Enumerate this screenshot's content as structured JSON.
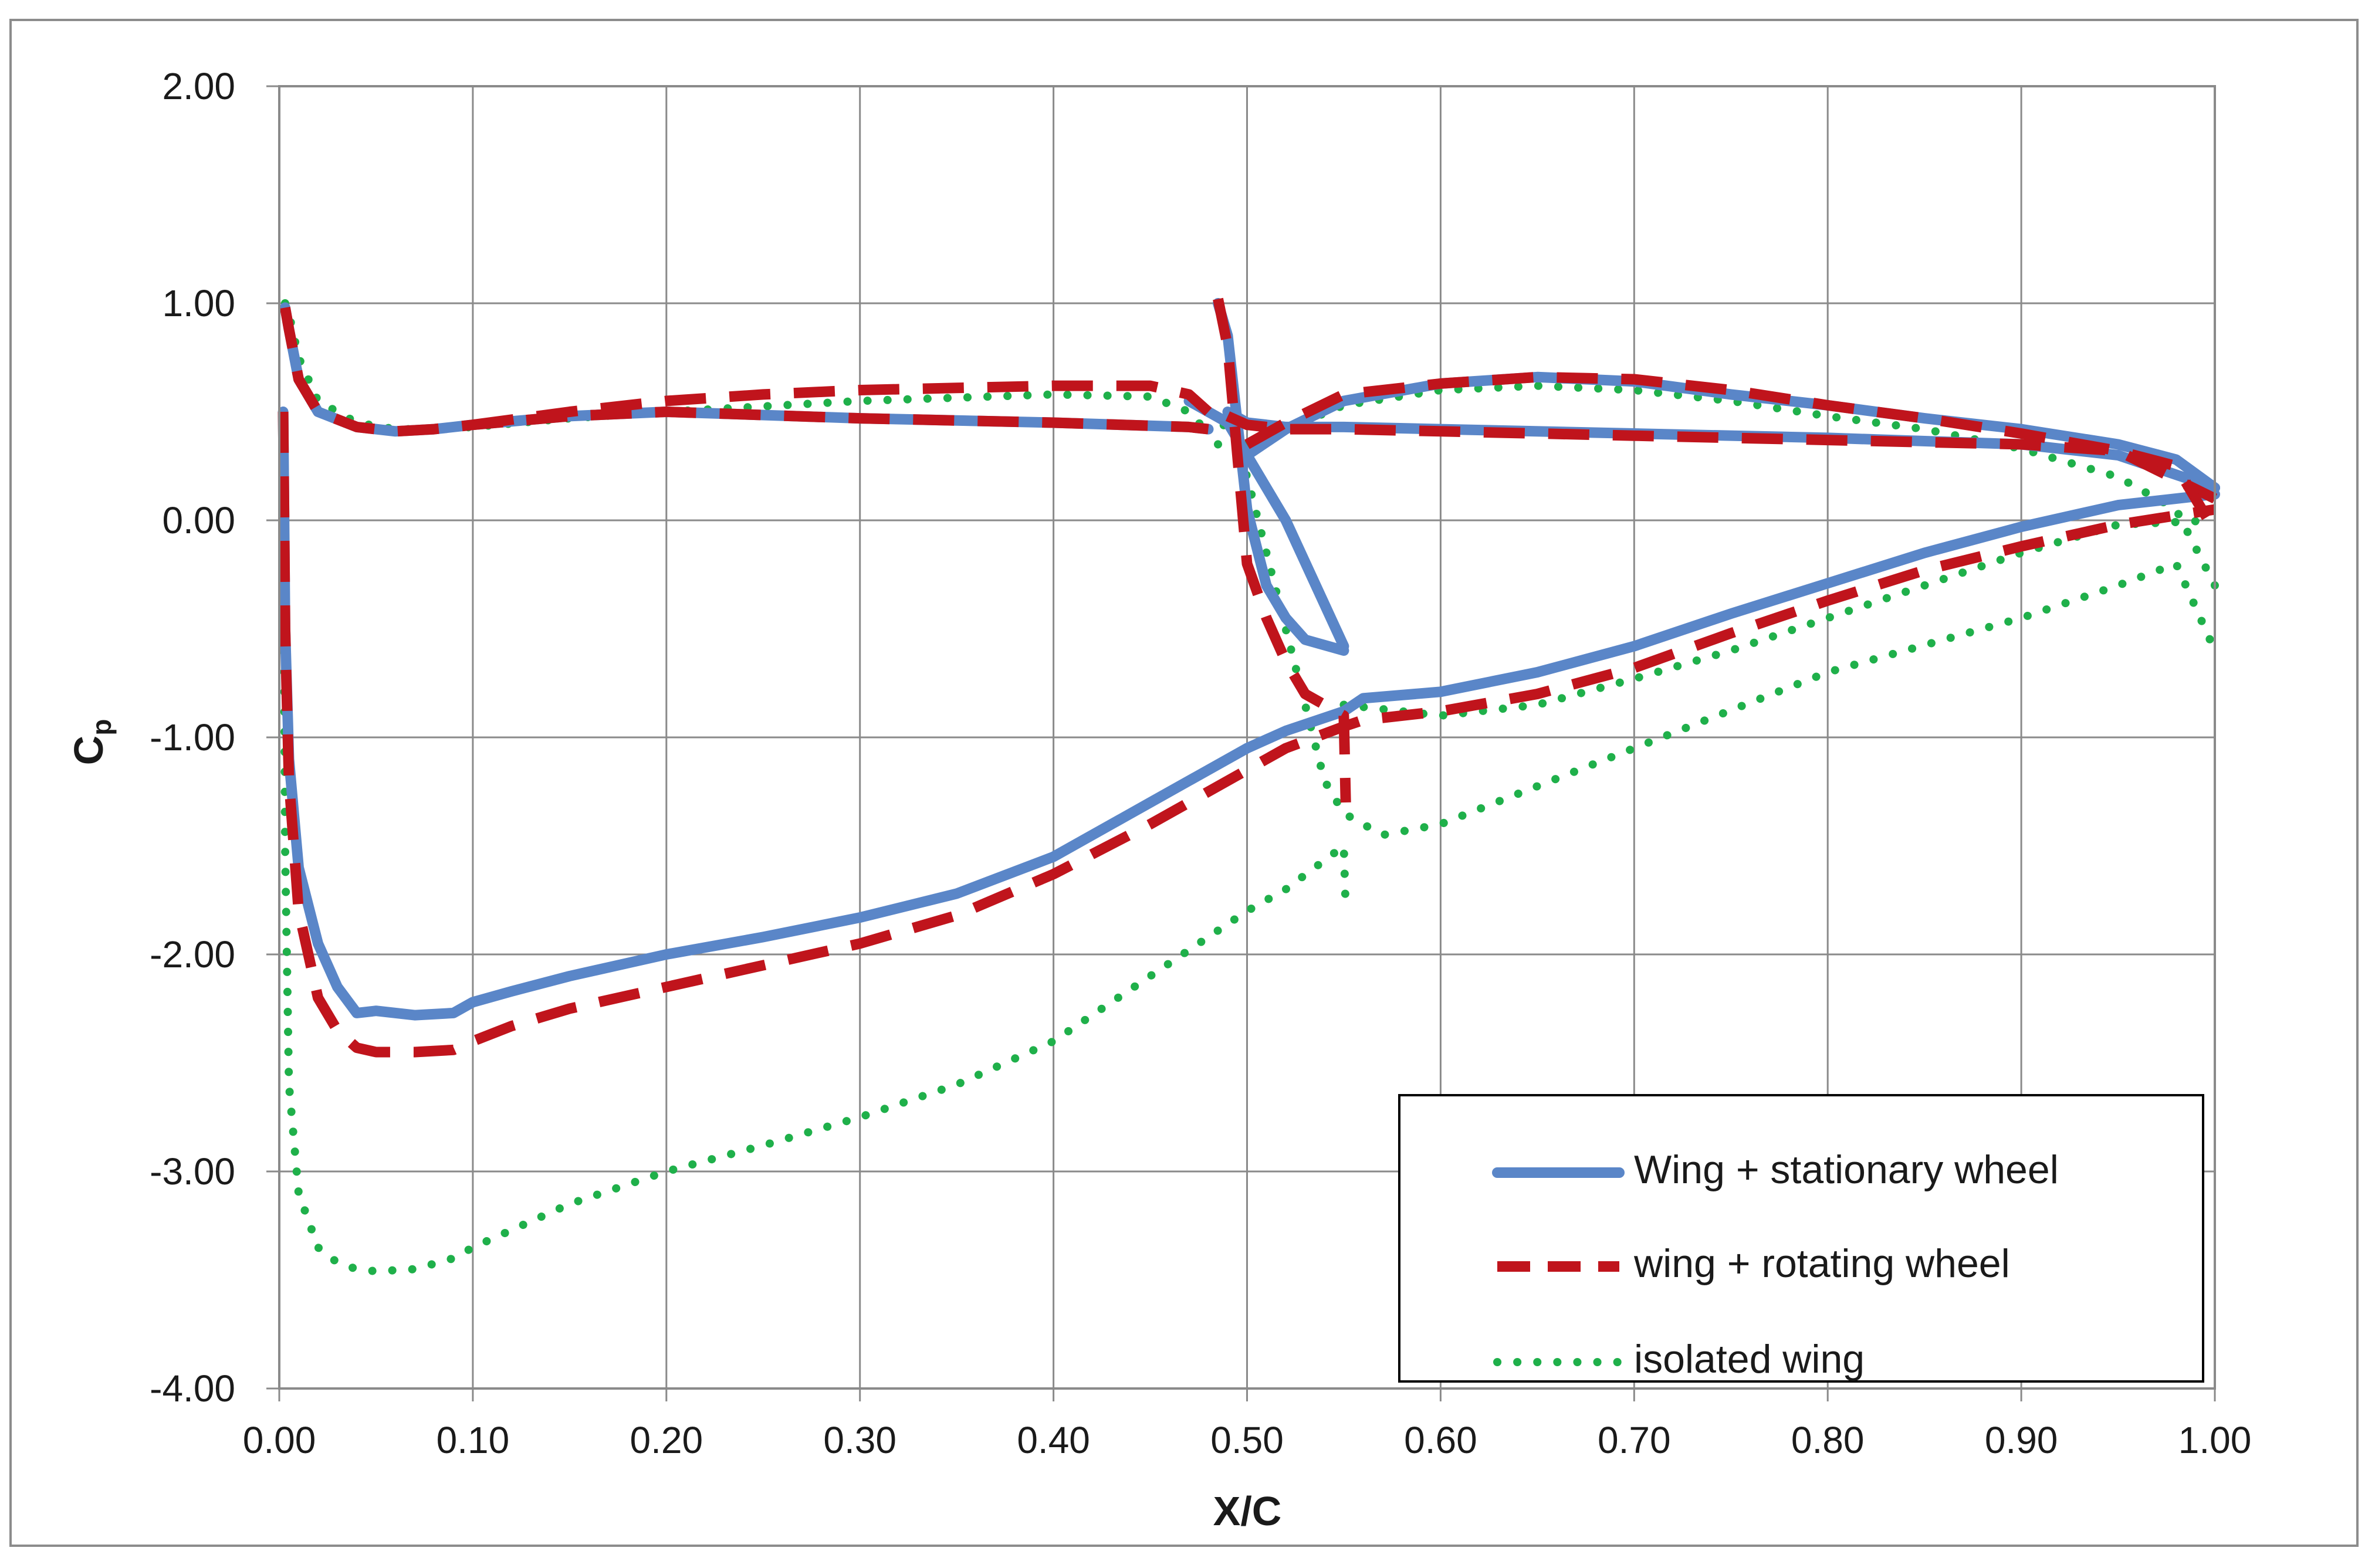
{
  "chart_data": {
    "type": "line",
    "title": "",
    "xlabel": "X/C",
    "ylabel": "Cp",
    "ylabel_main": "C",
    "ylabel_sub": "p",
    "xlim": [
      0.0,
      1.0
    ],
    "ylim": [
      -4.0,
      2.0
    ],
    "grid": true,
    "legend_position": "bottom-right",
    "x_ticks": [
      "0.00",
      "0.10",
      "0.20",
      "0.30",
      "0.40",
      "0.50",
      "0.60",
      "0.70",
      "0.80",
      "0.90",
      "1.00"
    ],
    "y_ticks": [
      "2.00",
      "1.00",
      "0.00",
      "-1.00",
      "-2.00",
      "-3.00",
      "-4.00"
    ],
    "series": [
      {
        "name": "Wing + stationary wheel",
        "color": "#5a86c8",
        "style": "solid",
        "segments": [
          {
            "label": "main-upper",
            "x": [
              0.002,
              0.003,
              0.005,
              0.01,
              0.02,
              0.03,
              0.04,
              0.05,
              0.07,
              0.09,
              0.1,
              0.12,
              0.15,
              0.2,
              0.25,
              0.3,
              0.35,
              0.4,
              0.45,
              0.5,
              0.52,
              0.55,
              0.56,
              0.6,
              0.65,
              0.7,
              0.75,
              0.8,
              0.85,
              0.9,
              0.95,
              1.0
            ],
            "y": [
              0.5,
              -0.5,
              -1.1,
              -1.6,
              -1.95,
              -2.15,
              -2.27,
              -2.26,
              -2.28,
              -2.27,
              -2.22,
              -2.17,
              -2.1,
              -2.0,
              -1.92,
              -1.83,
              -1.72,
              -1.55,
              -1.3,
              -1.05,
              -0.97,
              -0.88,
              -0.82,
              -0.79,
              -0.7,
              -0.58,
              -0.43,
              -0.29,
              -0.15,
              -0.03,
              0.07,
              0.12
            ]
          },
          {
            "label": "main-lower",
            "x": [
              0.003,
              0.005,
              0.01,
              0.02,
              0.04,
              0.06,
              0.08,
              0.1,
              0.15,
              0.2,
              0.3,
              0.4,
              0.47,
              0.48
            ],
            "y": [
              0.98,
              0.88,
              0.65,
              0.5,
              0.43,
              0.41,
              0.42,
              0.44,
              0.48,
              0.5,
              0.47,
              0.45,
              0.43,
              0.42
            ]
          },
          {
            "label": "flap-upper",
            "x": [
              0.485,
              0.49,
              0.5,
              0.51,
              0.52,
              0.53,
              0.55
            ],
            "y": [
              1.0,
              0.85,
              0.05,
              -0.3,
              -0.45,
              -0.55,
              -0.6
            ]
          },
          {
            "label": "flap-lower",
            "x": [
              0.49,
              0.5,
              0.52,
              0.55,
              0.6,
              0.7,
              0.8,
              0.9,
              0.95,
              1.0
            ],
            "y": [
              0.5,
              0.45,
              0.43,
              0.43,
              0.42,
              0.4,
              0.38,
              0.35,
              0.3,
              0.15
            ]
          },
          {
            "label": "main-trailing-upper",
            "x": [
              0.47,
              0.49,
              0.5,
              0.52,
              0.55
            ],
            "y": [
              0.55,
              0.45,
              0.3,
              0.0,
              -0.58
            ]
          },
          {
            "label": "flap-pressure",
            "x": [
              0.5,
              0.52,
              0.55,
              0.6,
              0.65,
              0.7,
              0.75,
              0.8,
              0.85,
              0.9,
              0.95,
              0.98,
              1.0
            ],
            "y": [
              0.3,
              0.42,
              0.55,
              0.63,
              0.66,
              0.64,
              0.58,
              0.53,
              0.47,
              0.42,
              0.35,
              0.28,
              0.15
            ]
          }
        ]
      },
      {
        "name": "wing + rotating wheel",
        "color": "#c0141c",
        "style": "dashed",
        "segments": [
          {
            "label": "main-upper",
            "x": [
              0.002,
              0.003,
              0.005,
              0.01,
              0.02,
              0.03,
              0.04,
              0.05,
              0.07,
              0.09,
              0.1,
              0.12,
              0.15,
              0.2,
              0.25,
              0.3,
              0.35,
              0.4,
              0.45,
              0.5,
              0.52,
              0.55,
              0.56,
              0.6,
              0.65,
              0.7,
              0.75,
              0.8,
              0.85,
              0.9,
              0.95,
              1.0
            ],
            "y": [
              0.5,
              -0.5,
              -1.2,
              -1.8,
              -2.2,
              -2.35,
              -2.43,
              -2.45,
              -2.45,
              -2.44,
              -2.4,
              -2.33,
              -2.25,
              -2.15,
              -2.05,
              -1.95,
              -1.82,
              -1.63,
              -1.4,
              -1.15,
              -1.05,
              -0.95,
              -0.92,
              -0.88,
              -0.8,
              -0.68,
              -0.52,
              -0.37,
              -0.23,
              -0.12,
              -0.02,
              0.05
            ]
          },
          {
            "label": "main-lower",
            "x": [
              0.003,
              0.005,
              0.01,
              0.02,
              0.04,
              0.06,
              0.08,
              0.1,
              0.15,
              0.2,
              0.3,
              0.4,
              0.47,
              0.48
            ],
            "y": [
              0.98,
              0.88,
              0.65,
              0.5,
              0.43,
              0.41,
              0.42,
              0.44,
              0.48,
              0.5,
              0.47,
              0.45,
              0.43,
              0.42
            ]
          },
          {
            "label": "main-pressure",
            "x": [
              0.1,
              0.15,
              0.2,
              0.25,
              0.3,
              0.35,
              0.4,
              0.45,
              0.47,
              0.48
            ],
            "y": [
              0.44,
              0.5,
              0.55,
              0.58,
              0.6,
              0.61,
              0.62,
              0.62,
              0.58,
              0.5
            ]
          },
          {
            "label": "flap-upper",
            "x": [
              0.485,
              0.49,
              0.5,
              0.51,
              0.52,
              0.53,
              0.55,
              0.551
            ],
            "y": [
              1.02,
              0.8,
              -0.2,
              -0.45,
              -0.65,
              -0.8,
              -0.9,
              -1.3
            ]
          },
          {
            "label": "flap-lower",
            "x": [
              0.49,
              0.5,
              0.52,
              0.55,
              0.6,
              0.7,
              0.8,
              0.9,
              0.95,
              1.0
            ],
            "y": [
              0.48,
              0.44,
              0.42,
              0.42,
              0.41,
              0.39,
              0.37,
              0.35,
              0.32,
              0.1
            ]
          },
          {
            "label": "flap-pressure",
            "x": [
              0.5,
              0.52,
              0.55,
              0.6,
              0.65,
              0.7,
              0.75,
              0.8,
              0.85,
              0.9,
              0.95,
              0.98,
              1.0
            ],
            "y": [
              0.35,
              0.45,
              0.58,
              0.63,
              0.66,
              0.65,
              0.6,
              0.53,
              0.47,
              0.4,
              0.32,
              0.25,
              -0.05
            ]
          }
        ]
      },
      {
        "name": "isolated wing",
        "color": "#1fb04a",
        "style": "dotted",
        "segments": [
          {
            "label": "main-upper",
            "x": [
              0.002,
              0.003,
              0.005,
              0.01,
              0.02,
              0.03,
              0.04,
              0.05,
              0.07,
              0.09,
              0.1,
              0.12,
              0.15,
              0.2,
              0.25,
              0.3,
              0.35,
              0.4,
              0.45,
              0.5,
              0.52,
              0.55,
              0.551
            ],
            "y": [
              0.5,
              -1.5,
              -2.6,
              -3.1,
              -3.35,
              -3.42,
              -3.45,
              -3.46,
              -3.45,
              -3.4,
              -3.35,
              -3.27,
              -3.15,
              -3.0,
              -2.88,
              -2.75,
              -2.6,
              -2.4,
              -2.1,
              -1.8,
              -1.7,
              -1.5,
              -1.8
            ]
          },
          {
            "label": "main-lower",
            "x": [
              0.003,
              0.005,
              0.01,
              0.02,
              0.04,
              0.06,
              0.08,
              0.1,
              0.15,
              0.2,
              0.3,
              0.4,
              0.45,
              0.47,
              0.48
            ],
            "y": [
              1.0,
              0.95,
              0.75,
              0.55,
              0.45,
              0.42,
              0.42,
              0.43,
              0.47,
              0.5,
              0.55,
              0.58,
              0.57,
              0.5,
              0.4
            ]
          },
          {
            "label": "flap-upper",
            "x": [
              0.485,
              0.49,
              0.5,
              0.52,
              0.54,
              0.55,
              0.57,
              0.6,
              0.7,
              0.8,
              0.9,
              0.95,
              0.98,
              1.0
            ],
            "y": [
              0.35,
              0.5,
              0.2,
              -0.5,
              -1.2,
              -1.35,
              -1.45,
              -1.4,
              -1.05,
              -0.7,
              -0.45,
              -0.3,
              -0.2,
              -0.6
            ]
          },
          {
            "label": "flap-pressure",
            "x": [
              0.5,
              0.52,
              0.55,
              0.6,
              0.65,
              0.7,
              0.75,
              0.8,
              0.85,
              0.9,
              0.95,
              0.98,
              1.0
            ],
            "y": [
              0.35,
              0.42,
              0.53,
              0.6,
              0.62,
              0.6,
              0.55,
              0.48,
              0.42,
              0.33,
              0.2,
              0.05,
              -0.3
            ]
          },
          {
            "label": "flap-lower-fill",
            "x": [
              0.55,
              0.6,
              0.65,
              0.7,
              0.75,
              0.8,
              0.85,
              0.9,
              0.95,
              1.0
            ],
            "y": [
              -0.85,
              -0.9,
              -0.85,
              -0.73,
              -0.6,
              -0.45,
              -0.3,
              -0.15,
              -0.02,
              0.0
            ]
          }
        ]
      }
    ]
  }
}
